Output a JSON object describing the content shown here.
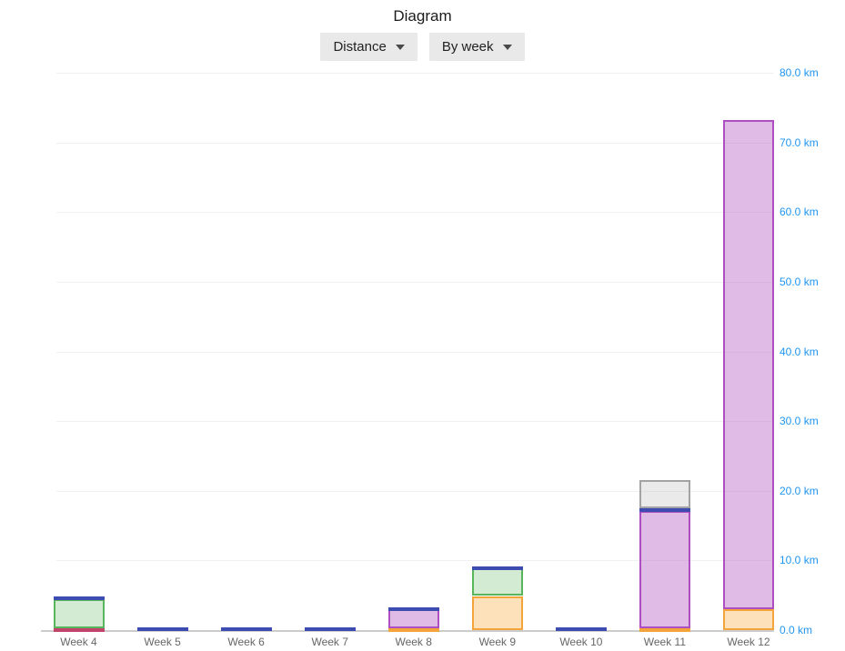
{
  "header": {
    "title": "Diagram"
  },
  "toolbar": {
    "metric_dropdown_label": "Distance",
    "grouping_dropdown_label": "By week"
  },
  "chart_data": {
    "type": "bar",
    "stacked": true,
    "title": "Diagram",
    "unit": "km",
    "legend": "none",
    "categories": [
      "Week 4",
      "Week 5",
      "Week 6",
      "Week 7",
      "Week 8",
      "Week 9",
      "Week 10",
      "Week 11",
      "Week 12"
    ],
    "series": [
      {
        "name": "red-segment",
        "border": "#c2426b",
        "fill": "rgba(198,70,110,0.40)",
        "values": [
          0.3,
          0,
          0,
          0,
          0,
          0,
          0,
          0,
          0
        ]
      },
      {
        "name": "orange-segment",
        "border": "#f3a43a",
        "fill": "rgba(250,170,60,0.35)",
        "values": [
          0,
          0,
          0,
          0,
          0.25,
          4.9,
          0,
          0.25,
          3.0
        ]
      },
      {
        "name": "purple-segment",
        "border": "#ad4fc0",
        "fill": "rgba(186,104,200,0.45)",
        "values": [
          0,
          0,
          0,
          0,
          2.75,
          0,
          0,
          16.9,
          70.2
        ]
      },
      {
        "name": "green-segment",
        "border": "#58b55c",
        "fill": "rgba(110,190,110,0.30)",
        "values": [
          4.1,
          0,
          0,
          0,
          0,
          4.0,
          0,
          0,
          0
        ]
      },
      {
        "name": "blue-segment",
        "border": "#3c4cb0",
        "fill": "rgba(90,105,190,0.55)",
        "values": [
          0.4,
          0.4,
          0.4,
          0.4,
          0.3,
          0.2,
          0.35,
          0.35,
          0
        ]
      },
      {
        "name": "gray-segment",
        "border": "#a3a3a3",
        "fill": "rgba(170,170,170,0.25)",
        "values": [
          0,
          0,
          0,
          0,
          0,
          0,
          0,
          4.1,
          0
        ]
      }
    ],
    "totals": [
      4.8,
      0.4,
      0.4,
      0.4,
      3.3,
      9.1,
      0.35,
      21.6,
      73.2
    ],
    "y_axis": {
      "min": 0,
      "max": 80,
      "tick_step": 10,
      "side": "right",
      "tick_labels": [
        "0.0 km",
        "10.0 km",
        "20.0 km",
        "30.0 km",
        "40.0 km",
        "50.0 km",
        "60.0 km",
        "70.0 km",
        "80.0 km"
      ],
      "label_color": "#2196f3"
    },
    "x_axis": {
      "label_color": "#666666"
    },
    "grid": {
      "on": true,
      "color": "#f1f1f3",
      "baseline_color": "#cccccc"
    }
  }
}
